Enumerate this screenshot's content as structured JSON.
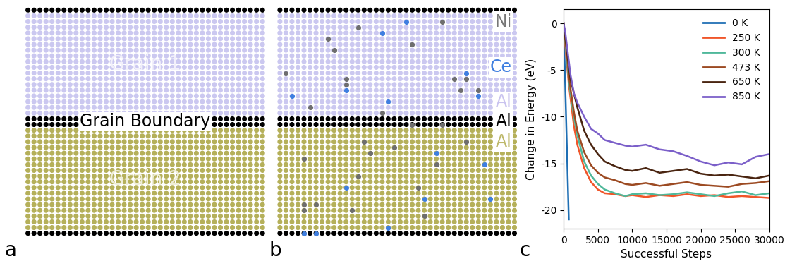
{
  "panel_labels": [
    "a",
    "b",
    "c"
  ],
  "diagram_a": {
    "labels": [
      "Grain 1",
      "Grain Boundary",
      "Grain 2"
    ]
  },
  "diagram_b": {
    "labels": [
      "Ni",
      "Ce",
      "Al",
      "Al",
      "Al"
    ],
    "ni_sites": [
      [
        13,
        3
      ],
      [
        8,
        5
      ],
      [
        9,
        7
      ],
      [
        22,
        6
      ],
      [
        27,
        2
      ],
      [
        1,
        11
      ],
      [
        11,
        12
      ],
      [
        11,
        13
      ],
      [
        5,
        17
      ],
      [
        17,
        18
      ],
      [
        29,
        12
      ],
      [
        31,
        12
      ],
      [
        30,
        14
      ],
      [
        33,
        14
      ],
      [
        22,
        20
      ],
      [
        27,
        20
      ],
      [
        14,
        23
      ],
      [
        4,
        26
      ],
      [
        19,
        24
      ],
      [
        15,
        25
      ],
      [
        13,
        29
      ],
      [
        4,
        34
      ],
      [
        6,
        34
      ],
      [
        4,
        35
      ],
      [
        23,
        31
      ],
      [
        26,
        27
      ],
      [
        31,
        23
      ],
      [
        24,
        36
      ],
      [
        12,
        35
      ]
    ],
    "ce_sites": [
      [
        17,
        4
      ],
      [
        21,
        2
      ],
      [
        31,
        11
      ],
      [
        2,
        15
      ],
      [
        11,
        14
      ],
      [
        18,
        16
      ],
      [
        33,
        15
      ],
      [
        26,
        25
      ],
      [
        11,
        31
      ],
      [
        24,
        33
      ],
      [
        34,
        27
      ],
      [
        35,
        33
      ],
      [
        18,
        38
      ],
      [
        4,
        39
      ],
      [
        6,
        39
      ]
    ]
  },
  "chart_data": {
    "type": "line",
    "x_label": "Successful Steps",
    "y_label": "Change in Energy (eV)",
    "x": [
      0,
      250,
      500,
      750,
      1000,
      1500,
      2000,
      3000,
      4000,
      5000,
      6000,
      7500,
      9000,
      10000,
      12000,
      14000,
      16000,
      18000,
      20000,
      22000,
      24000,
      26000,
      28000,
      30000
    ],
    "series": [
      {
        "name": "0 K",
        "color": "#1f6fb4",
        "values": [
          0,
          -7,
          -14,
          -21,
          null,
          null,
          null,
          null,
          null,
          null,
          null,
          null,
          null,
          null,
          null,
          null,
          null,
          null,
          null,
          null,
          null,
          null,
          null,
          null
        ]
      },
      {
        "name": "250 K",
        "color": "#f0562a",
        "values": [
          0,
          -2.5,
          -4.5,
          -6.5,
          -8,
          -11,
          -13,
          -15.5,
          -17,
          -17.8,
          -18.2,
          -18.3,
          -18.5,
          -18.4,
          -18.6,
          -18.4,
          -18.5,
          -18.3,
          -18.5,
          -18.4,
          -18.6,
          -18.5,
          -18.6,
          -18.7
        ]
      },
      {
        "name": "300 K",
        "color": "#4fb89a",
        "values": [
          0,
          -2,
          -4,
          -6,
          -7.5,
          -10,
          -12,
          -14.8,
          -16.3,
          -17.2,
          -17.8,
          -18.2,
          -18.5,
          -18.3,
          -18.2,
          -18.4,
          -18.3,
          -18.1,
          -18.3,
          -18.5,
          -18.2,
          -18.0,
          -18.4,
          -18.2
        ]
      },
      {
        "name": "473 K",
        "color": "#9c4a22",
        "values": [
          0,
          -1.8,
          -3.5,
          -5.5,
          -7,
          -9.5,
          -11.5,
          -13.8,
          -15.2,
          -16,
          -16.5,
          -16.8,
          -17.2,
          -17.3,
          -17.1,
          -17.4,
          -17.2,
          -17.0,
          -17.3,
          -17.4,
          -17.5,
          -17.2,
          -17.1,
          -16.9
        ]
      },
      {
        "name": "650 K",
        "color": "#4a2511",
        "values": [
          0,
          -1.5,
          -3,
          -4.5,
          -6,
          -7.5,
          -9,
          -11.5,
          -13,
          -14,
          -14.8,
          -15.3,
          -15.7,
          -15.8,
          -15.5,
          -16,
          -15.8,
          -15.6,
          -16.1,
          -16.3,
          -16.2,
          -16.4,
          -16.6,
          -16.3
        ]
      },
      {
        "name": "850 K",
        "color": "#7b5fc9",
        "values": [
          0,
          -1,
          -2.5,
          -4,
          -5.5,
          -7.5,
          -8.5,
          -10,
          -11.3,
          -11.8,
          -12.5,
          -12.8,
          -13.1,
          -13.2,
          -13.0,
          -13.5,
          -13.7,
          -14.2,
          -14.8,
          -15.2,
          -14.9,
          -15.1,
          -14.3,
          -14.0
        ]
      }
    ],
    "xlim": [
      0,
      30000
    ],
    "xticks": [
      0,
      5000,
      10000,
      15000,
      20000,
      25000,
      30000
    ],
    "ylim": [
      -22,
      1.5
    ],
    "yticks": [
      -20,
      -15,
      -10,
      -5,
      0
    ],
    "legend": "upper right",
    "grid": false
  }
}
